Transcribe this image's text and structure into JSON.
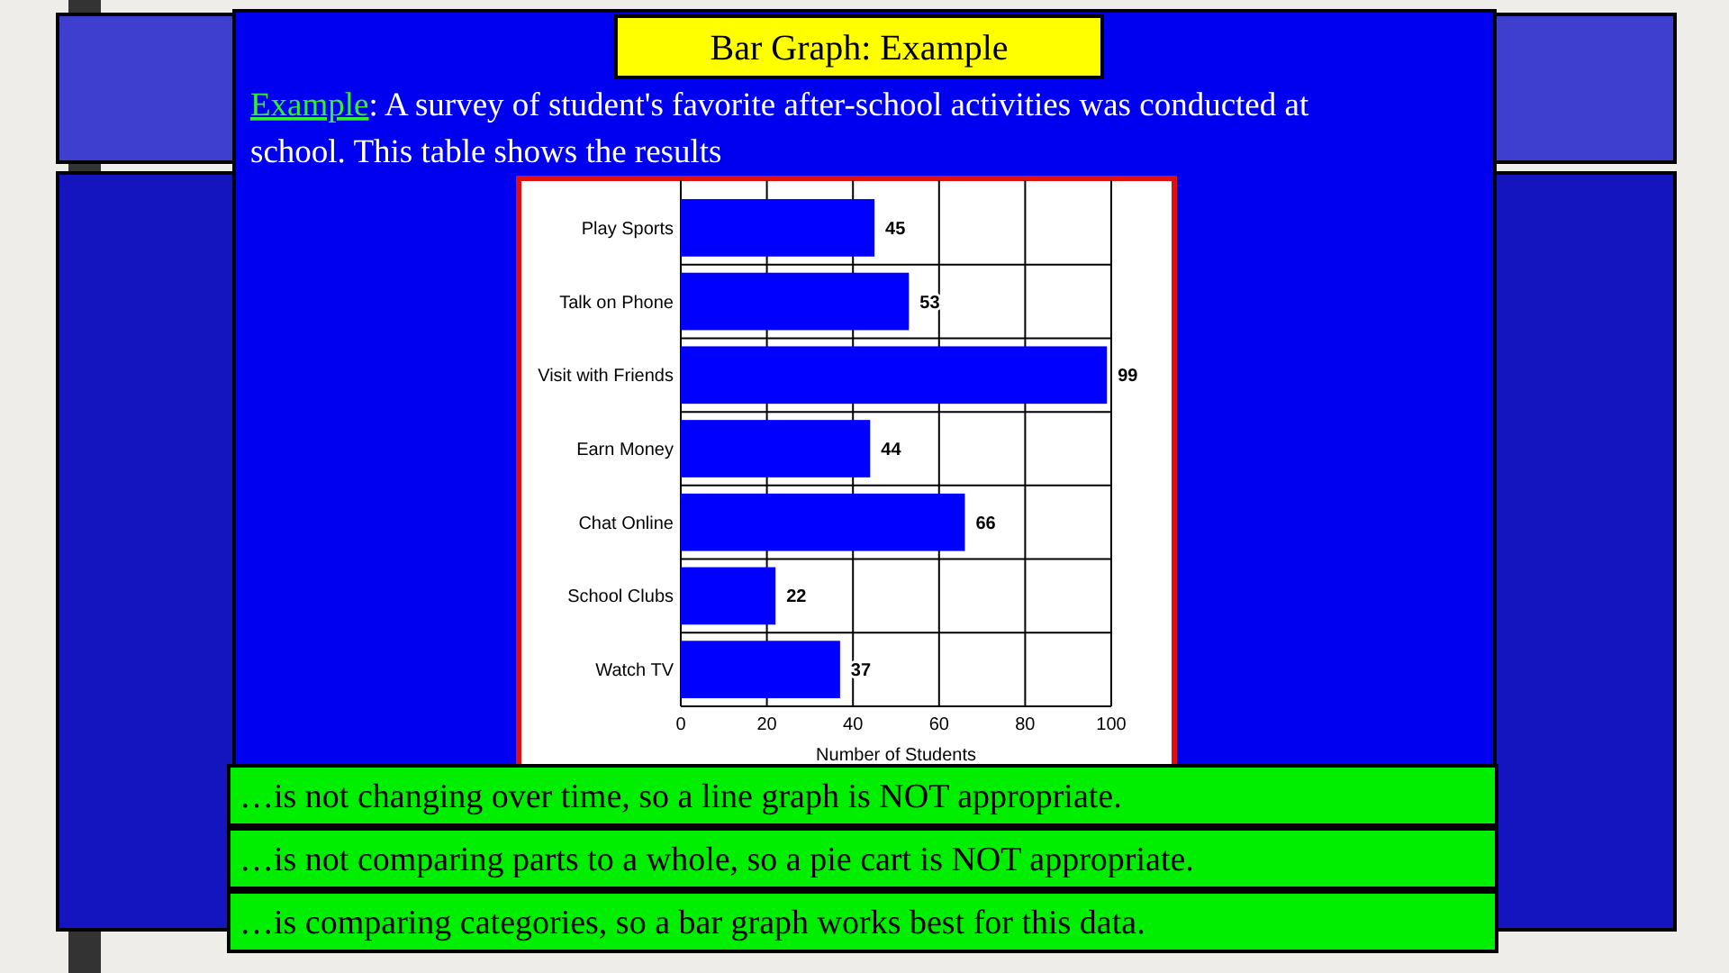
{
  "chart_data": {
    "type": "bar",
    "orientation": "horizontal",
    "title": "Bar Graph: Example",
    "subtitle": "Example: A survey of student's favorite after-school activities was conducted at school. This table shows the results",
    "categories": [
      "Play Sports",
      "Talk on Phone",
      "Visit with Friends",
      "Earn Money",
      "Chat Online",
      "School Clubs",
      "Watch TV"
    ],
    "values": [
      45,
      53,
      99,
      44,
      66,
      22,
      37
    ],
    "color": "#0000ff",
    "data_labels": true,
    "xlim": [
      0,
      100
    ],
    "xticks": [
      0,
      20,
      40,
      60,
      80,
      100
    ],
    "xlabel": "Number of Students",
    "grid": "x",
    "annotations": [
      "…is not changing over time, so a line graph is NOT appropriate.",
      "…is not comparing parts to a whole, so a pie cart is NOT  appropriate.",
      "…is comparing categories, so a bar graph works best for this data."
    ]
  }
}
